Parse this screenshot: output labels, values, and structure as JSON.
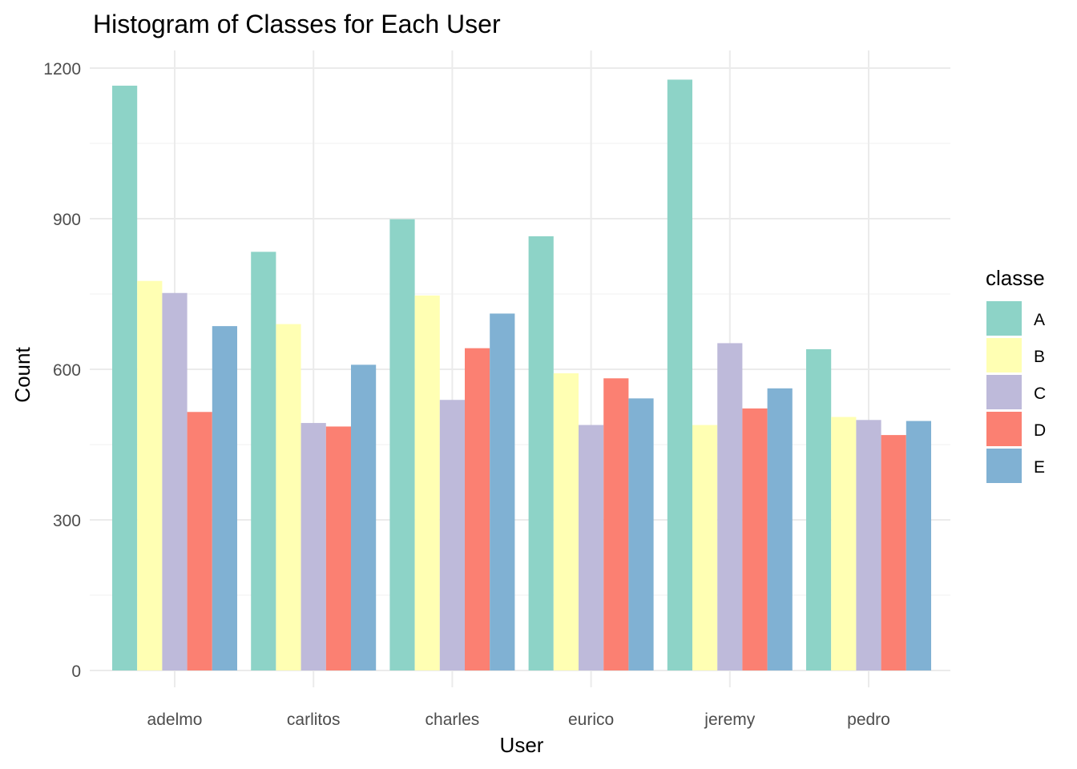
{
  "chart_data": {
    "type": "bar",
    "title": "Histogram of Classes for Each User",
    "xlabel": "User",
    "ylabel": "Count",
    "categories": [
      "adelmo",
      "carlitos",
      "charles",
      "eurico",
      "jeremy",
      "pedro"
    ],
    "ylim": [
      0,
      1200
    ],
    "yticks": [
      0,
      300,
      600,
      900,
      1200
    ],
    "legend_title": "classe",
    "legend_position": "right",
    "grid": true,
    "series": [
      {
        "name": "A",
        "color": "#8DD3C7",
        "values": [
          1165,
          834,
          899,
          865,
          1177,
          640
        ]
      },
      {
        "name": "B",
        "color": "#FFFFB3",
        "values": [
          776,
          690,
          747,
          592,
          489,
          505
        ]
      },
      {
        "name": "C",
        "color": "#BEBADA",
        "values": [
          752,
          493,
          539,
          489,
          652,
          499
        ]
      },
      {
        "name": "D",
        "color": "#FB8072",
        "values": [
          515,
          486,
          642,
          582,
          522,
          469
        ]
      },
      {
        "name": "E",
        "color": "#80B1D3",
        "values": [
          686,
          609,
          711,
          542,
          562,
          497
        ]
      }
    ]
  }
}
